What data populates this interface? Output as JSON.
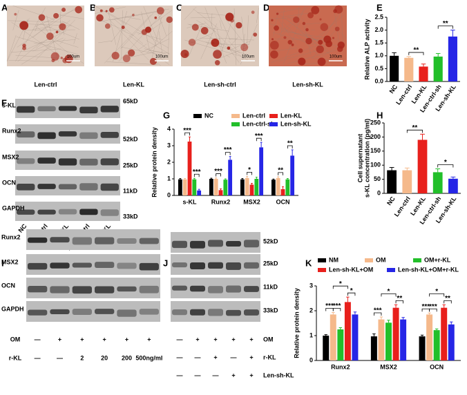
{
  "panels": [
    "A",
    "B",
    "C",
    "D",
    "E",
    "F",
    "G",
    "H",
    "I",
    "J",
    "K"
  ],
  "micrographs": [
    {
      "caption": "Len-ctrl",
      "scale_label": "100um"
    },
    {
      "caption": "Len-KL",
      "scale_label": "100um"
    },
    {
      "caption": "Len-sh-ctrl",
      "scale_label": "100um"
    },
    {
      "caption": "Len-sh-KL",
      "scale_label": "100um"
    }
  ],
  "blot_f": {
    "rows": [
      "s-KL",
      "Runx2",
      "MSX2",
      "OCN",
      "GAPDH"
    ],
    "sizes": [
      "65kD",
      "52kD",
      "25kD",
      "11kD",
      "33kD"
    ],
    "lanes": [
      "NC",
      "Len-ctrl",
      "Len-KL",
      "Len-sh-ctrl",
      "Len-sh-KL"
    ]
  },
  "blot_i": {
    "rows": [
      "Runx2",
      "MSX2",
      "OCN",
      "GAPDH"
    ],
    "treatments": [
      {
        "name": "OM",
        "cells": [
          "—",
          "+",
          "+",
          "+",
          "+",
          "+"
        ]
      },
      {
        "name": "r-KL",
        "cells": [
          "—",
          "—",
          "2",
          "20",
          "200",
          "500ng/ml"
        ]
      }
    ]
  },
  "blot_j": {
    "sizes": [
      "52kD",
      "25kD",
      "11kD",
      "33kD"
    ],
    "treatments": [
      {
        "name": "OM",
        "cells": [
          "—",
          "+",
          "+",
          "+",
          "+"
        ]
      },
      {
        "name": "r-KL",
        "cells": [
          "—",
          "—",
          "+",
          "—",
          "+"
        ]
      },
      {
        "name": "Len-sh-KL",
        "cells": [
          "—",
          "—",
          "—",
          "+",
          "+"
        ]
      }
    ]
  },
  "chart_data": [
    {
      "type": "bar",
      "ylabel": "Relative ALP activity",
      "categories": [
        "NC",
        "Len-ctrl",
        "Len-KL",
        "Len-ctrl-sh",
        "Len-sh-KL"
      ],
      "values": [
        1.0,
        0.92,
        0.58,
        0.97,
        1.75
      ],
      "errors": [
        0.12,
        0.05,
        0.1,
        0.12,
        0.25
      ],
      "colors": [
        "#000000",
        "#f5b98b",
        "#e8201c",
        "#22bf2a",
        "#2626e6"
      ],
      "ylim": [
        0,
        2.5
      ],
      "yticks": [
        {
          "value": 0,
          "label": "0.0"
        },
        0.5,
        {
          "value": 1,
          "label": "1.0"
        },
        1.5,
        {
          "value": 2,
          "label": "2.0"
        },
        2.5
      ],
      "annotations": [
        {
          "text": "**",
          "from": 1,
          "to": 2
        },
        {
          "text": "**",
          "from": 3,
          "to": 4
        }
      ]
    },
    {
      "type": "grouped_bar",
      "ylabel": "Relative protein density",
      "categories": [
        "s-KL",
        "Runx2",
        "MSX2",
        "OCN"
      ],
      "series": [
        {
          "name": "NC",
          "color": "#000000",
          "values": [
            0.97,
            1.0,
            0.97,
            0.95
          ],
          "errors": [
            0.05,
            0.04,
            0.05,
            0.04
          ]
        },
        {
          "name": "Len-ctrl",
          "color": "#f5b98b",
          "values": [
            0.97,
            1.0,
            1.05,
            1.05
          ],
          "errors": [
            0.05,
            0.06,
            0.1,
            0.08
          ]
        },
        {
          "name": "Len-KL",
          "color": "#e8201c",
          "values": [
            3.25,
            0.32,
            0.65,
            0.38
          ],
          "errors": [
            0.28,
            0.08,
            0.08,
            0.15
          ]
        },
        {
          "name": "Len-ctrl-sh",
          "color": "#22bf2a",
          "values": [
            0.97,
            0.95,
            1.0,
            0.97
          ],
          "errors": [
            0.06,
            0.05,
            0.1,
            0.05
          ]
        },
        {
          "name": "Len-sh-KL",
          "color": "#2626e6",
          "values": [
            0.3,
            2.15,
            2.9,
            2.4
          ],
          "errors": [
            0.07,
            0.2,
            0.3,
            0.35
          ]
        }
      ],
      "ylim": [
        0,
        4
      ],
      "yticks": [
        0,
        1,
        2,
        3,
        4
      ],
      "annotations": [
        {
          "text": "***",
          "category": 0,
          "from": 1,
          "to": 2
        },
        {
          "text": "***",
          "category": 0,
          "from": 3,
          "to": 4
        },
        {
          "text": "***",
          "category": 1,
          "from": 1,
          "to": 2
        },
        {
          "text": "***",
          "category": 1,
          "from": 3,
          "to": 4
        },
        {
          "text": "*",
          "category": 2,
          "from": 1,
          "to": 2
        },
        {
          "text": "***",
          "category": 2,
          "from": 3,
          "to": 4
        },
        {
          "text": "**",
          "category": 3,
          "from": 1,
          "to": 2
        },
        {
          "text": "**",
          "category": 3,
          "from": 3,
          "to": 4
        }
      ]
    },
    {
      "type": "bar",
      "ylabel": [
        "Cell supernatant",
        "s-KL concentration (pg/ml)"
      ],
      "categories": [
        "NC",
        "Len-ctrl",
        "Len-KL",
        "Len-ctrl-sh",
        "Len-sh-KL"
      ],
      "values": [
        82,
        82,
        190,
        75,
        52
      ],
      "errors": [
        10,
        8,
        20,
        12,
        6
      ],
      "colors": [
        "#000000",
        "#f5b98b",
        "#e8201c",
        "#22bf2a",
        "#2626e6"
      ],
      "ylim": [
        0,
        250
      ],
      "yticks": [
        0,
        50,
        100,
        150,
        200,
        250
      ],
      "annotations": [
        {
          "text": "**",
          "from": 1,
          "to": 2
        },
        {
          "text": "*",
          "from": 3,
          "to": 4
        }
      ]
    },
    {
      "type": "grouped_bar",
      "ylabel": "Relative protein density",
      "categories": [
        "Runx2",
        "MSX2",
        "OCN"
      ],
      "series": [
        {
          "name": "NM",
          "color": "#000000",
          "values": [
            1.0,
            0.97,
            0.97
          ],
          "errors": [
            0.04,
            0.1,
            0.05
          ]
        },
        {
          "name": "OM",
          "color": "#f5b98b",
          "values": [
            1.85,
            1.65,
            1.85
          ],
          "errors": [
            0.08,
            0.1,
            0.06
          ]
        },
        {
          "name": "OM+r-KL",
          "color": "#22bf2a",
          "values": [
            1.25,
            1.52,
            1.22
          ],
          "errors": [
            0.07,
            0.1,
            0.05
          ]
        },
        {
          "name": "Len-sh-KL+OM",
          "color": "#e8201c",
          "values": [
            2.35,
            2.12,
            2.12
          ],
          "errors": [
            0.2,
            0.12,
            0.12
          ]
        },
        {
          "name": "Len-sh-KL+OM+r-KL",
          "color": "#2626e6",
          "values": [
            1.85,
            1.65,
            1.45
          ],
          "errors": [
            0.1,
            0.08,
            0.1
          ]
        }
      ],
      "ylim": [
        0,
        3
      ],
      "yticks": [
        0,
        1,
        2,
        3
      ],
      "annotations": [
        {
          "text": "***",
          "category": 0,
          "from": 0,
          "to": 1
        },
        {
          "text": "***",
          "category": 0,
          "from": 1,
          "to": 2
        },
        {
          "text": "*",
          "category": 0,
          "from": 1,
          "to": 3
        },
        {
          "text": "*",
          "category": 0,
          "from": 3,
          "to": 4
        },
        {
          "text": "***",
          "category": 1,
          "from": 0,
          "to": 1
        },
        {
          "text": "*",
          "category": 1,
          "from": 1,
          "to": 3
        },
        {
          "text": "**",
          "category": 1,
          "from": 3,
          "to": 4
        },
        {
          "text": "***",
          "category": 2,
          "from": 0,
          "to": 1
        },
        {
          "text": "***",
          "category": 2,
          "from": 1,
          "to": 2
        },
        {
          "text": "*",
          "category": 2,
          "from": 1,
          "to": 3
        },
        {
          "text": "**",
          "category": 2,
          "from": 3,
          "to": 4
        }
      ]
    }
  ]
}
